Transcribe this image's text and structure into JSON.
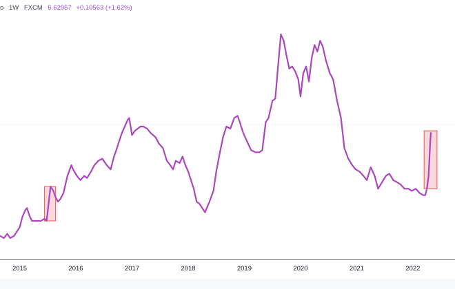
{
  "header": {
    "symbol_fragment": "o",
    "interval": "1W",
    "source": "FXCM",
    "last_price": "6.62957",
    "change": "+0.10563 (+1.62%)"
  },
  "colors": {
    "line": "#ab47bc",
    "highlight_fill": "#f8c9cd",
    "highlight_stroke": "#ef5350",
    "gridline": "#f0f3fa",
    "axis_line": "#787b86",
    "text": "#131722",
    "price_text": "#a14fd3",
    "background": "#ffffff"
  },
  "chart_data": {
    "type": "line",
    "title": "",
    "xlabel": "",
    "ylabel": "",
    "x_ticks": [
      "2015",
      "2016",
      "2017",
      "2018",
      "2019",
      "2020",
      "2021",
      "2022"
    ],
    "xlim": [
      2014.65,
      2022.75
    ],
    "ylim": [
      6.05,
      7.25
    ],
    "grid": "horizontal",
    "series": [
      {
        "values": [
          [
            2014.65,
            6.15
          ],
          [
            2014.72,
            6.14
          ],
          [
            2014.78,
            6.16
          ],
          [
            2014.83,
            6.14
          ],
          [
            2014.9,
            6.15
          ],
          [
            2015.0,
            6.19
          ],
          [
            2015.05,
            6.24
          ],
          [
            2015.1,
            6.27
          ],
          [
            2015.13,
            6.28
          ],
          [
            2015.18,
            6.24
          ],
          [
            2015.22,
            6.22
          ],
          [
            2015.3,
            6.22
          ],
          [
            2015.38,
            6.22
          ],
          [
            2015.44,
            6.23
          ],
          [
            2015.48,
            6.22
          ],
          [
            2015.55,
            6.38
          ],
          [
            2015.6,
            6.36
          ],
          [
            2015.64,
            6.33
          ],
          [
            2015.68,
            6.31
          ],
          [
            2015.72,
            6.32
          ],
          [
            2015.78,
            6.35
          ],
          [
            2015.85,
            6.43
          ],
          [
            2015.92,
            6.48
          ],
          [
            2015.95,
            6.46
          ],
          [
            2016.02,
            6.43
          ],
          [
            2016.08,
            6.41
          ],
          [
            2016.15,
            6.43
          ],
          [
            2016.2,
            6.42
          ],
          [
            2016.27,
            6.45
          ],
          [
            2016.33,
            6.48
          ],
          [
            2016.4,
            6.5
          ],
          [
            2016.47,
            6.51
          ],
          [
            2016.55,
            6.48
          ],
          [
            2016.62,
            6.46
          ],
          [
            2016.68,
            6.52
          ],
          [
            2016.72,
            6.55
          ],
          [
            2016.77,
            6.59
          ],
          [
            2016.82,
            6.63
          ],
          [
            2016.87,
            6.66
          ],
          [
            2016.92,
            6.69
          ],
          [
            2016.95,
            6.7
          ],
          [
            2017.0,
            6.62
          ],
          [
            2017.05,
            6.64
          ],
          [
            2017.1,
            6.65
          ],
          [
            2017.15,
            6.66
          ],
          [
            2017.2,
            6.66
          ],
          [
            2017.27,
            6.65
          ],
          [
            2017.33,
            6.63
          ],
          [
            2017.42,
            6.61
          ],
          [
            2017.48,
            6.58
          ],
          [
            2017.55,
            6.56
          ],
          [
            2017.62,
            6.5
          ],
          [
            2017.68,
            6.48
          ],
          [
            2017.73,
            6.46
          ],
          [
            2017.78,
            6.5
          ],
          [
            2017.85,
            6.49
          ],
          [
            2017.9,
            6.52
          ],
          [
            2017.95,
            6.48
          ],
          [
            2018.0,
            6.45
          ],
          [
            2018.05,
            6.41
          ],
          [
            2018.1,
            6.37
          ],
          [
            2018.15,
            6.31
          ],
          [
            2018.2,
            6.3
          ],
          [
            2018.25,
            6.28
          ],
          [
            2018.3,
            6.26
          ],
          [
            2018.38,
            6.31
          ],
          [
            2018.45,
            6.36
          ],
          [
            2018.5,
            6.45
          ],
          [
            2018.55,
            6.52
          ],
          [
            2018.62,
            6.61
          ],
          [
            2018.68,
            6.66
          ],
          [
            2018.75,
            6.65
          ],
          [
            2018.82,
            6.7
          ],
          [
            2018.88,
            6.71
          ],
          [
            2018.92,
            6.68
          ],
          [
            2018.98,
            6.63
          ],
          [
            2019.05,
            6.59
          ],
          [
            2019.12,
            6.55
          ],
          [
            2019.2,
            6.54
          ],
          [
            2019.27,
            6.54
          ],
          [
            2019.32,
            6.55
          ],
          [
            2019.38,
            6.68
          ],
          [
            2019.43,
            6.7
          ],
          [
            2019.5,
            6.78
          ],
          [
            2019.55,
            6.79
          ],
          [
            2019.6,
            6.94
          ],
          [
            2019.65,
            7.09
          ],
          [
            2019.7,
            7.06
          ],
          [
            2019.75,
            6.99
          ],
          [
            2019.8,
            6.93
          ],
          [
            2019.85,
            6.94
          ],
          [
            2019.9,
            6.92
          ],
          [
            2019.96,
            6.88
          ],
          [
            2020.0,
            6.8
          ],
          [
            2020.05,
            6.91
          ],
          [
            2020.1,
            6.94
          ],
          [
            2020.15,
            6.87
          ],
          [
            2020.2,
            6.98
          ],
          [
            2020.25,
            7.04
          ],
          [
            2020.3,
            7.01
          ],
          [
            2020.35,
            7.06
          ],
          [
            2020.4,
            7.03
          ],
          [
            2020.45,
            6.97
          ],
          [
            2020.52,
            6.91
          ],
          [
            2020.58,
            6.88
          ],
          [
            2020.65,
            6.78
          ],
          [
            2020.72,
            6.7
          ],
          [
            2020.78,
            6.56
          ],
          [
            2020.85,
            6.51
          ],
          [
            2020.92,
            6.48
          ],
          [
            2020.98,
            6.46
          ],
          [
            2021.05,
            6.45
          ],
          [
            2021.12,
            6.43
          ],
          [
            2021.18,
            6.41
          ],
          [
            2021.25,
            6.47
          ],
          [
            2021.32,
            6.43
          ],
          [
            2021.38,
            6.37
          ],
          [
            2021.45,
            6.4
          ],
          [
            2021.52,
            6.43
          ],
          [
            2021.58,
            6.44
          ],
          [
            2021.65,
            6.41
          ],
          [
            2021.72,
            6.4
          ],
          [
            2021.78,
            6.39
          ],
          [
            2021.85,
            6.37
          ],
          [
            2021.92,
            6.37
          ],
          [
            2021.98,
            6.36
          ],
          [
            2022.05,
            6.37
          ],
          [
            2022.12,
            6.35
          ],
          [
            2022.18,
            6.34
          ],
          [
            2022.22,
            6.34
          ],
          [
            2022.25,
            6.37
          ],
          [
            2022.28,
            6.43
          ],
          [
            2022.31,
            6.59
          ],
          [
            2022.32,
            6.63
          ]
        ]
      }
    ],
    "highlights": [
      {
        "x_start": 2015.44,
        "x_end": 2015.64,
        "y_bottom": 6.22,
        "y_top": 6.38
      },
      {
        "x_start": 2022.2,
        "x_end": 2022.43,
        "y_bottom": 6.37,
        "y_top": 6.64
      }
    ]
  }
}
